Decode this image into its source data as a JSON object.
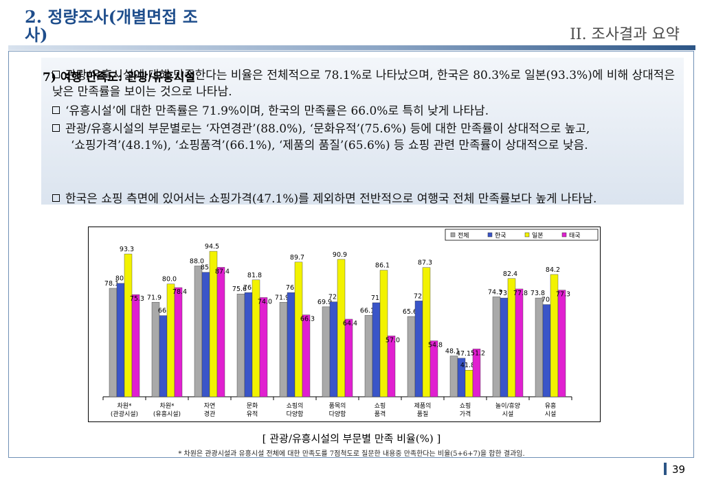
{
  "header": {
    "title": "2. 정량조사(개별면접 조사)",
    "section": "II. 조사결과 요약"
  },
  "summary": {
    "label": "7) 여행 만족도: 관광/유흥시설",
    "bullets": [
      "관광/유흥시설에 대해 만족한다는 비율은 전체적으로 78.1%로 나타났으며, 한국은 80.3%로 일본(93.3%)에 비해 상대적은 낮은 만족률을 보이는 것으로 나타남.",
      "‘유흥시설’에 대한 만족률은 71.9%이며, 한국의 만족률은 66.0%로 특히 낮게 나타남.",
      "관광/유흥시설의 부문별로는 ‘자연경관’(88.0%), ‘문화유적’(75.6%) 등에 대한 만족률이 상대적으로 높고,",
      "한국은 쇼핑 측면에 있어서는 쇼핑가격(47.1%)를 제외하면 전반적으로 여행국 전체 만족률보다 높게 나타남."
    ],
    "continuation": "‘쇼핑가격’(48.1%), ‘쇼핑품격’(66.1%), ‘제품의 품질’(65.6%) 등 쇼핑 관련 만족률이 상대적으로 낮음."
  },
  "chart_data": {
    "type": "bar",
    "categories": [
      [
        "차원*",
        "(관광시설)"
      ],
      [
        "차원*",
        "(유흥시설)"
      ],
      [
        "자연",
        "경관"
      ],
      [
        "문화",
        "유적"
      ],
      [
        "쇼핑의",
        "다양함"
      ],
      [
        "품목의",
        "다양함"
      ],
      [
        "쇼핑",
        "품격"
      ],
      [
        "제품의",
        "품질"
      ],
      [
        "쇼핑",
        "가격"
      ],
      [
        "놀이/휴양",
        "시설"
      ],
      [
        "유흥",
        "시설"
      ]
    ],
    "series": [
      {
        "name": "전체",
        "color": "#a9a9a9",
        "values": [
          78.1,
          71.9,
          88.0,
          75.6,
          71.9,
          69.9,
          66.1,
          65.6,
          48.1,
          74.3,
          73.8
        ]
      },
      {
        "name": "한국",
        "color": "#3a55c8",
        "values": [
          80.3,
          66.0,
          85.2,
          76.2,
          76.2,
          72.1,
          71.7,
          72.5,
          47.1,
          73.8,
          70.9
        ]
      },
      {
        "name": "일본",
        "color": "#f2f200",
        "values": [
          93.3,
          80.0,
          94.5,
          81.8,
          89.7,
          90.9,
          86.1,
          87.3,
          41.8,
          82.4,
          84.2
        ]
      },
      {
        "name": "태국",
        "color": "#e020d0",
        "values": [
          75.3,
          78.4,
          87.4,
          74.0,
          66.3,
          64.4,
          57.0,
          54.8,
          51.2,
          77.8,
          77.3
        ]
      }
    ],
    "ylim": [
      30,
      100
    ],
    "legend_position": "top-right",
    "grid": false
  },
  "caption": "[ 관광/유흥시설의 부문별 만족 비율(%) ]",
  "note": "* 차원은 관광시설과 유흥시설 전체에 대한 만족도를 7점척도로 질문한 내용중 만족한다는 비율(5+6+7)을 합한 결과임.",
  "page_number": "39"
}
